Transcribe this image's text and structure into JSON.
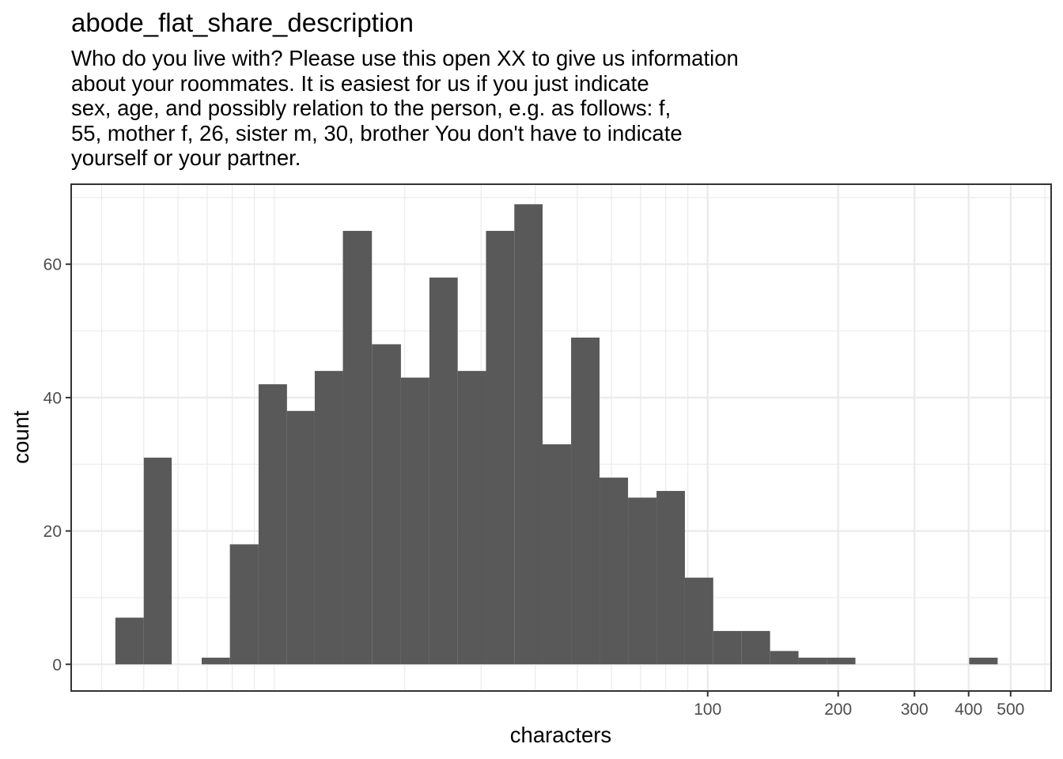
{
  "chart_data": {
    "type": "bar",
    "title": "abode_flat_share_description",
    "subtitle_lines": [
      "Who do you live with? Please use this open XX to give us information",
      "about your roommates. It is easiest for us if you just indicate",
      "sex, age, and possibly relation to the person, e.g. as follows: f,",
      "55, mother f, 26, sister m, 30, brother You don't have to indicate",
      "yourself or your partner."
    ],
    "xlabel": "characters",
    "ylabel": "count",
    "x_scale": "log10",
    "xlim": [
      3.4,
      620
    ],
    "ylim": [
      -4,
      72
    ],
    "grid": true,
    "x_ticks": [
      100,
      200,
      300,
      400,
      500
    ],
    "x_tick_labels": [
      "100",
      "200",
      "300",
      "400",
      "500"
    ],
    "y_ticks": [
      0,
      20,
      40,
      60
    ],
    "y_tick_labels": [
      "0",
      "20",
      "40",
      "60"
    ],
    "bar_fill": "#595959",
    "bins": [
      {
        "x0": 4.3,
        "x1": 5.0,
        "count": 7
      },
      {
        "x0": 5.0,
        "x1": 5.8,
        "count": 31
      },
      {
        "x0": 5.8,
        "x1": 6.8,
        "count": 0
      },
      {
        "x0": 6.8,
        "x1": 7.9,
        "count": 1
      },
      {
        "x0": 7.9,
        "x1": 9.2,
        "count": 18
      },
      {
        "x0": 9.2,
        "x1": 10.7,
        "count": 42
      },
      {
        "x0": 10.7,
        "x1": 12.4,
        "count": 38
      },
      {
        "x0": 12.4,
        "x1": 14.4,
        "count": 44
      },
      {
        "x0": 14.4,
        "x1": 16.8,
        "count": 65
      },
      {
        "x0": 16.8,
        "x1": 19.6,
        "count": 48
      },
      {
        "x0": 19.6,
        "x1": 22.8,
        "count": 43
      },
      {
        "x0": 22.8,
        "x1": 26.5,
        "count": 58
      },
      {
        "x0": 26.5,
        "x1": 30.8,
        "count": 44
      },
      {
        "x0": 30.8,
        "x1": 35.8,
        "count": 65
      },
      {
        "x0": 35.8,
        "x1": 41.6,
        "count": 69
      },
      {
        "x0": 41.6,
        "x1": 48.4,
        "count": 33
      },
      {
        "x0": 48.4,
        "x1": 56.3,
        "count": 49
      },
      {
        "x0": 56.3,
        "x1": 65.5,
        "count": 28
      },
      {
        "x0": 65.5,
        "x1": 76.2,
        "count": 25
      },
      {
        "x0": 76.2,
        "x1": 88.6,
        "count": 26
      },
      {
        "x0": 88.6,
        "x1": 103.0,
        "count": 13
      },
      {
        "x0": 103.0,
        "x1": 119.8,
        "count": 5
      },
      {
        "x0": 119.8,
        "x1": 139.3,
        "count": 5
      },
      {
        "x0": 139.3,
        "x1": 162.0,
        "count": 2
      },
      {
        "x0": 162.0,
        "x1": 188.5,
        "count": 1
      },
      {
        "x0": 188.5,
        "x1": 219.2,
        "count": 1
      },
      {
        "x0": 219.2,
        "x1": 255.0,
        "count": 0
      },
      {
        "x0": 255.0,
        "x1": 296.6,
        "count": 0
      },
      {
        "x0": 296.6,
        "x1": 344.9,
        "count": 0
      },
      {
        "x0": 344.9,
        "x1": 401.2,
        "count": 0
      },
      {
        "x0": 401.2,
        "x1": 466.7,
        "count": 1
      }
    ]
  }
}
